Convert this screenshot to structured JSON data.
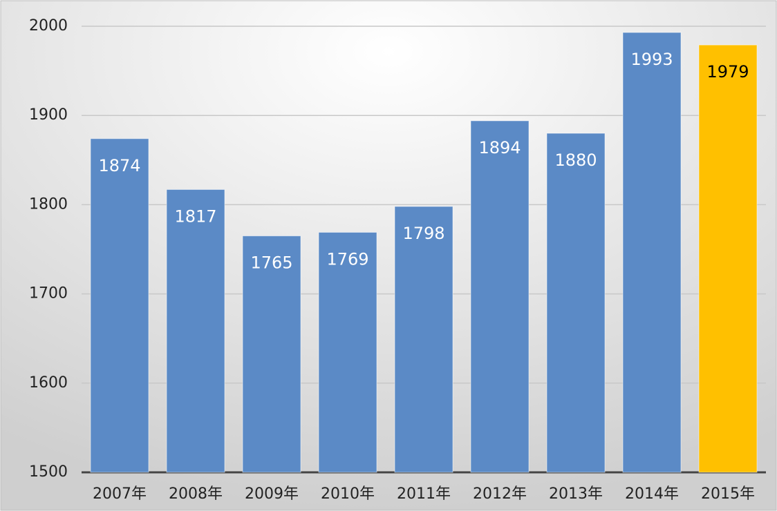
{
  "chart_data": {
    "type": "bar",
    "categories": [
      "2007年",
      "2008年",
      "2009年",
      "2010年",
      "2011年",
      "2012年",
      "2013年",
      "2014年",
      "2015年"
    ],
    "values": [
      1874,
      1817,
      1765,
      1769,
      1798,
      1894,
      1880,
      1993,
      1979
    ],
    "colors": [
      "#5b8ac6",
      "#5b8ac6",
      "#5b8ac6",
      "#5b8ac6",
      "#5b8ac6",
      "#5b8ac6",
      "#5b8ac6",
      "#5b8ac6",
      "#ffc000"
    ],
    "label_colors": [
      "#ffffff",
      "#ffffff",
      "#ffffff",
      "#ffffff",
      "#ffffff",
      "#ffffff",
      "#ffffff",
      "#ffffff",
      "#000000"
    ],
    "ylim": [
      1500,
      2000
    ],
    "yticks": [
      1500,
      1600,
      1700,
      1800,
      1900,
      2000
    ],
    "grid": true
  }
}
